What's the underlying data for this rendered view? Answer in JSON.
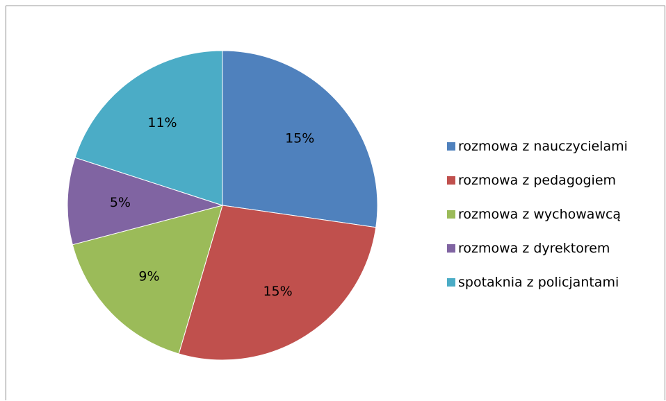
{
  "chart_data": {
    "type": "pie",
    "title": "",
    "categories": [
      "rozmowa z nauczycielami",
      "rozmowa z pedagogiem",
      "rozmowa z wychowawcą",
      "rozmowa z dyrektorem",
      "spotaknia z policjantami"
    ],
    "values": [
      15,
      15,
      9,
      5,
      11
    ],
    "data_labels": [
      "15%",
      "15%",
      "9%",
      "5%",
      "11%"
    ],
    "colors": [
      "#4F81BD",
      "#C0504D",
      "#9BBB59",
      "#8064A2",
      "#4BACC6"
    ],
    "start_angle": "12 o'clock",
    "direction": "clockwise",
    "legend_position": "right"
  }
}
